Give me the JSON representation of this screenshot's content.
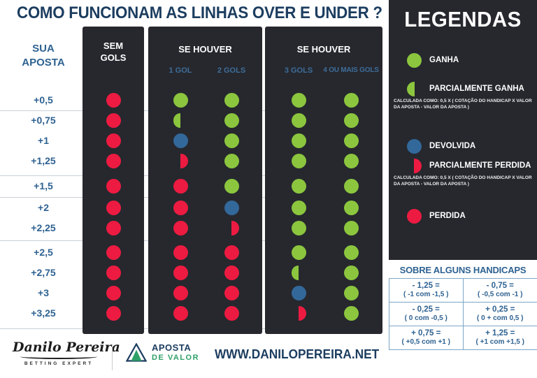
{
  "title": "COMO FUNCIONAM AS LINHAS OVER E UNDER ?",
  "table": {
    "left_header": "SUA APOSTA",
    "col_sem_gols": "SEM GOLS",
    "se_houver_mid": "SE HOUVER",
    "se_houver_right": "SE HOUVER",
    "sub_1gol": "1 GOL",
    "sub_2gols": "2 GOLS",
    "sub_3gols": "3 GOLS",
    "sub_4gols": "4 OU MAIS GOLS",
    "rows": [
      {
        "label": "+0,5",
        "cells": [
          "red",
          "green",
          "green",
          "green",
          "green"
        ]
      },
      {
        "label": "+0,75",
        "cells": [
          "red",
          "half_green",
          "green",
          "green",
          "green"
        ]
      },
      {
        "label": "+1",
        "cells": [
          "red",
          "blue",
          "green",
          "green",
          "green"
        ]
      },
      {
        "label": "+1,25",
        "cells": [
          "red",
          "half_red",
          "green",
          "green",
          "green"
        ]
      },
      {
        "label": "+1,5",
        "cells": [
          "red",
          "red",
          "green",
          "green",
          "green"
        ]
      },
      {
        "label": "+2",
        "cells": [
          "red",
          "red",
          "blue",
          "green",
          "green"
        ]
      },
      {
        "label": "+2,25",
        "cells": [
          "red",
          "red",
          "half_red",
          "green",
          "green"
        ]
      },
      {
        "label": "+2,5",
        "cells": [
          "red",
          "red",
          "red",
          "green",
          "green"
        ]
      },
      {
        "label": "+2,75",
        "cells": [
          "red",
          "red",
          "red",
          "half_green",
          "green"
        ]
      },
      {
        "label": "+3",
        "cells": [
          "red",
          "red",
          "red",
          "blue",
          "green"
        ]
      },
      {
        "label": "+3,25",
        "cells": [
          "red",
          "red",
          "red",
          "half_red",
          "green"
        ]
      }
    ]
  },
  "legend": {
    "title": "LEGENDAS",
    "items": [
      {
        "type": "green",
        "label": "GANHA"
      },
      {
        "type": "half_green",
        "label": "PARCIALMENTE GANHA",
        "note": "CALCULADA COMO: 0,5 X ( COTAÇÃO DO HANDICAP X VALOR DA APOSTA - VALOR DA APOSTA )"
      },
      {
        "type": "blue",
        "label": "DEVOLVIDA"
      },
      {
        "type": "half_red",
        "label": "PARCIALMENTE PERDIDA",
        "note": "CALCULADA COMO: 0,5 X ( COTAÇÃO DO HANDICAP X VALOR DA APOSTA - VALOR DA APOSTA )"
      },
      {
        "type": "red",
        "label": "PERDIDA"
      }
    ]
  },
  "handicaps": {
    "title": "SOBRE ALGUNS HANDICAPS",
    "cells": [
      {
        "value": "- 1,25 =",
        "formula": "( -1 com -1,5 )"
      },
      {
        "value": "- 0,75 =",
        "formula": "( -0,5 com -1 )"
      },
      {
        "value": "- 0,25 =",
        "formula": "( 0 com -0,5 )"
      },
      {
        "value": "+ 0,25 =",
        "formula": "( 0 + com 0,5 )"
      },
      {
        "value": "+ 0,75 =",
        "formula": "( +0,5 com +1 )"
      },
      {
        "value": "+ 1,25 =",
        "formula": "( +1 com +1,5 )"
      }
    ]
  },
  "footer": {
    "brand_script": "Danilo Pereira",
    "brand_sub": "BETTING EXPERT",
    "logo2_line1": "APOSTA",
    "logo2_line2": "DE VALOR",
    "website": "WWW.DANILOPEREIRA.NET"
  },
  "colors": {
    "green": "#8cc63e",
    "red": "#ed1b41",
    "blue": "#33689b",
    "dark_panel": "#26282e",
    "navy": "#1c3d5f",
    "label_blue": "#2e6291",
    "grid_line_blue": "#7ca6c6"
  }
}
